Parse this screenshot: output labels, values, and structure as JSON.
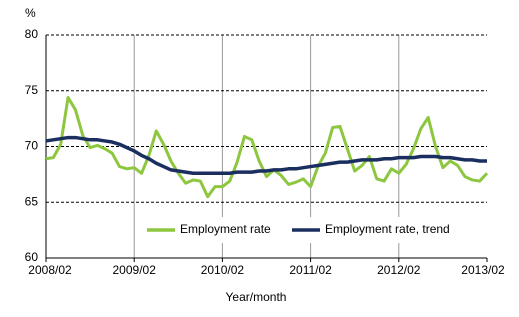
{
  "chart_data": {
    "type": "line",
    "y_unit": "%",
    "x_label": "Year/month",
    "categories": [
      "2008/02",
      null,
      null,
      null,
      null,
      null,
      null,
      null,
      null,
      null,
      null,
      null,
      "2009/02",
      null,
      null,
      null,
      null,
      null,
      null,
      null,
      null,
      null,
      null,
      null,
      "2010/02",
      null,
      null,
      null,
      null,
      null,
      null,
      null,
      null,
      null,
      null,
      null,
      "2011/02",
      null,
      null,
      null,
      null,
      null,
      null,
      null,
      null,
      null,
      null,
      null,
      "2012/02",
      null,
      null,
      null,
      null,
      null,
      null,
      null,
      null,
      null,
      null,
      null,
      "2013/02"
    ],
    "series": [
      {
        "name": "Employment rate",
        "color": "#8dc63f",
        "values": [
          68.9,
          69.0,
          70.2,
          74.4,
          73.3,
          71.0,
          69.9,
          70.1,
          69.8,
          69.4,
          68.2,
          68.0,
          68.1,
          67.6,
          69.2,
          71.4,
          70.2,
          68.7,
          67.6,
          66.7,
          67.0,
          66.9,
          65.5,
          66.4,
          66.4,
          66.9,
          68.6,
          70.9,
          70.6,
          68.7,
          67.3,
          67.9,
          67.4,
          66.6,
          66.8,
          67.1,
          66.4,
          68.2,
          69.4,
          71.7,
          71.8,
          69.8,
          67.8,
          68.3,
          69.1,
          67.1,
          66.9,
          68.0,
          67.6,
          68.4,
          69.8,
          71.6,
          72.6,
          70.0,
          68.1,
          68.7,
          68.3,
          67.3,
          67.0,
          66.9,
          67.6
        ]
      },
      {
        "name": "Employment rate, trend",
        "color": "#1a2f5f",
        "values": [
          70.5,
          70.6,
          70.7,
          70.8,
          70.8,
          70.7,
          70.6,
          70.6,
          70.5,
          70.4,
          70.2,
          69.9,
          69.6,
          69.2,
          68.9,
          68.5,
          68.2,
          67.9,
          67.8,
          67.7,
          67.6,
          67.6,
          67.6,
          67.6,
          67.6,
          67.6,
          67.7,
          67.7,
          67.7,
          67.8,
          67.8,
          67.9,
          67.9,
          68.0,
          68.0,
          68.1,
          68.2,
          68.3,
          68.4,
          68.5,
          68.6,
          68.6,
          68.7,
          68.8,
          68.8,
          68.8,
          68.9,
          68.9,
          69.0,
          69.0,
          69.0,
          69.1,
          69.1,
          69.1,
          69.0,
          69.0,
          68.9,
          68.8,
          68.8,
          68.7,
          68.7
        ]
      }
    ],
    "ylim": [
      60,
      80
    ],
    "yticks": [
      60,
      65,
      70,
      75,
      80
    ],
    "grid": true,
    "legend": "lower center"
  }
}
